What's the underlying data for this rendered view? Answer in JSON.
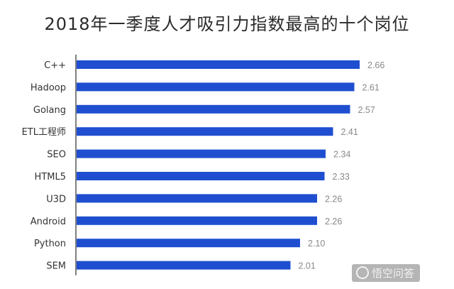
{
  "chart_data": {
    "type": "bar",
    "orientation": "horizontal",
    "title": "2018年一季度人才吸引力指数最高的十个岗位",
    "categories": [
      "C++",
      "Hadoop",
      "Golang",
      "ETL工程师",
      "SEO",
      "HTML5",
      "U3D",
      "Android",
      "Python",
      "SEM"
    ],
    "values": [
      2.66,
      2.61,
      2.57,
      2.41,
      2.34,
      2.33,
      2.26,
      2.26,
      2.1,
      2.01
    ],
    "value_labels": [
      "2.66",
      "2.61",
      "2.57",
      "2.41",
      "2.34",
      "2.33",
      "2.26",
      "2.26",
      "2.10",
      "2.01"
    ],
    "xlim": [
      0,
      2.8
    ],
    "grid": false,
    "legend": "none",
    "colors": {
      "bar": "#1f4fd0",
      "axis": "#555555",
      "text": "#333333",
      "value_text": "#888888"
    }
  },
  "watermark": {
    "text": "悟空问答"
  }
}
